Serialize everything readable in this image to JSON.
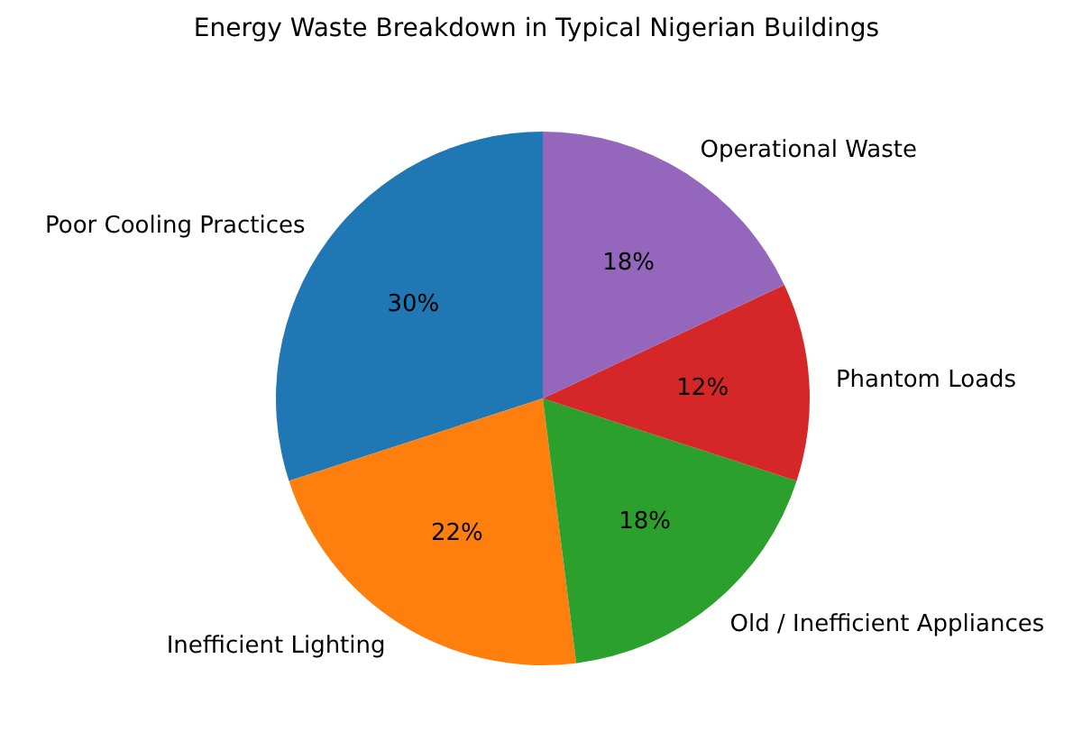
{
  "chart_data": {
    "type": "pie",
    "title": "Energy Waste Breakdown in Typical Nigerian Buildings",
    "categories": [
      "Poor Cooling Practices",
      "Inefficient Lighting",
      "Old / Inefficient Appliances",
      "Phantom Loads",
      "Operational Waste"
    ],
    "values": [
      30,
      22,
      18,
      12,
      18
    ],
    "colors": [
      "#1f77b4",
      "#ff7f0e",
      "#2ca02c",
      "#d62728",
      "#9467bd"
    ],
    "value_labels": [
      "30%",
      "22%",
      "18%",
      "12%",
      "18%"
    ]
  }
}
